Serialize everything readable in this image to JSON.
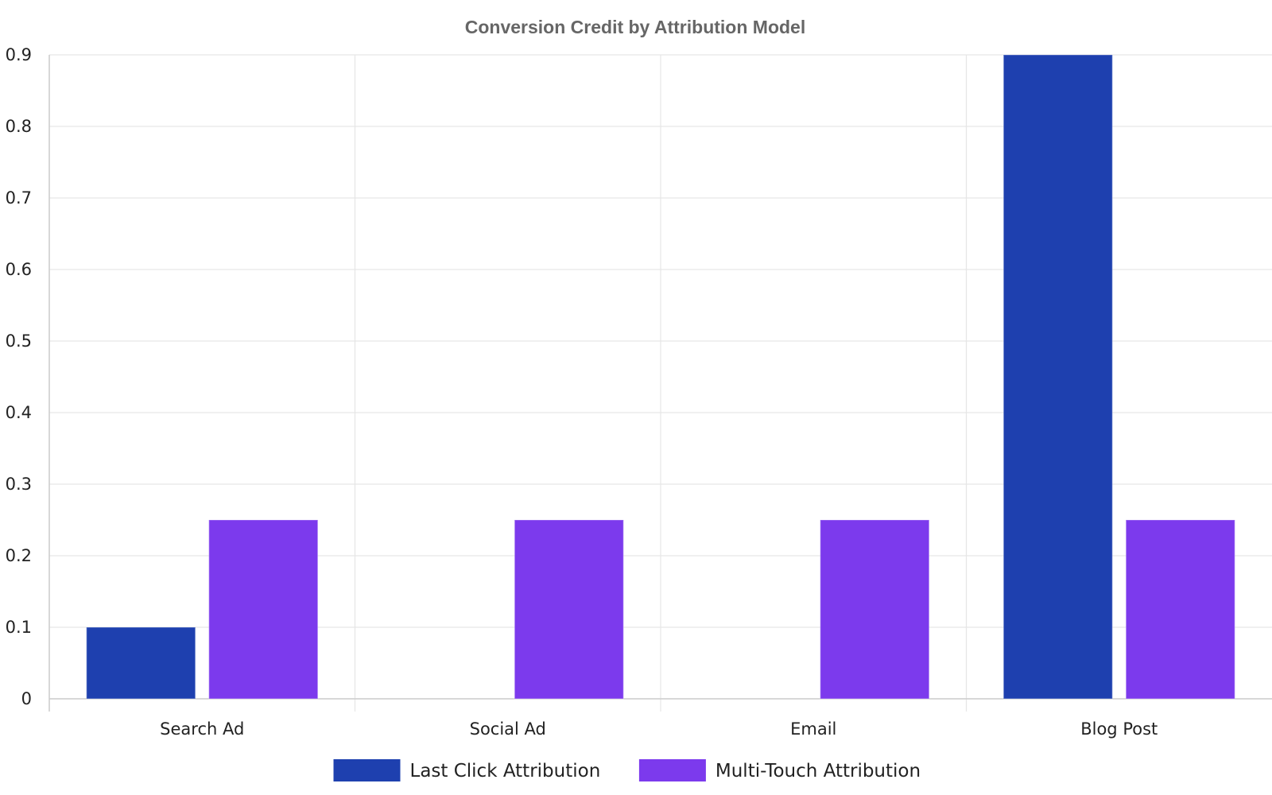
{
  "chart_data": {
    "type": "bar",
    "title": "Conversion Credit by Attribution Model",
    "xlabel": "",
    "ylabel": "",
    "categories": [
      "Search Ad",
      "Social Ad",
      "Email",
      "Blog Post"
    ],
    "series": [
      {
        "name": "Last Click Attribution",
        "color": "#1e40af",
        "values": [
          0.1,
          0,
          0,
          0.9
        ]
      },
      {
        "name": "Multi-Touch Attribution",
        "color": "#7c3aed",
        "values": [
          0.25,
          0.25,
          0.25,
          0.25
        ]
      }
    ],
    "ylim": [
      0,
      0.9
    ],
    "yticks": [
      "0",
      "0.1",
      "0.2",
      "0.3",
      "0.4",
      "0.5",
      "0.6",
      "0.7",
      "0.8",
      "0.9"
    ],
    "grid": true,
    "legend_position": "bottom-center"
  }
}
